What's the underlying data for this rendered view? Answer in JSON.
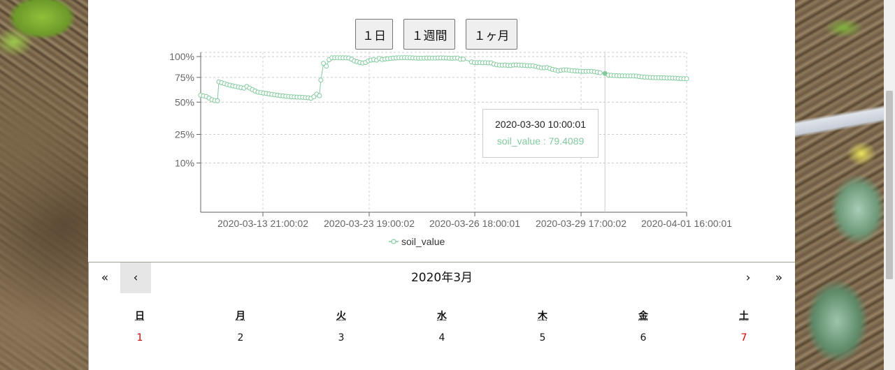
{
  "range_buttons": {
    "day": "１日",
    "week": "１週間",
    "month": "１ヶ月"
  },
  "tooltip": {
    "time": "2020-03-30 10:00:01",
    "value_text": "soil_value : 79.4089"
  },
  "legend": {
    "label": "soil_value"
  },
  "calendar": {
    "nav": {
      "prev2": "«",
      "prev": "‹",
      "label": "2020年3月",
      "next": "›",
      "next2": "»"
    },
    "weekdays": [
      "日",
      "月",
      "火",
      "水",
      "木",
      "金",
      "土"
    ],
    "first_row_days": [
      "1",
      "2",
      "3",
      "4",
      "5",
      "6",
      "7"
    ]
  },
  "colors": {
    "series": "#82ca9d",
    "grid": "#cccccc",
    "axis": "#666666",
    "weekend": "#d10000"
  },
  "chart_data": {
    "type": "line",
    "y_scale": "sqrt",
    "ylim": [
      0,
      100
    ],
    "y_ticks": [
      10,
      25,
      50,
      75,
      100
    ],
    "y_tick_labels": [
      "10%",
      "25%",
      "50%",
      "75%",
      "100%"
    ],
    "x_tick_labels": [
      "2020-03-13 21:00:02",
      "2020-03-23 19:00:02",
      "2020-03-26 18:00:01",
      "2020-03-29 17:00:02",
      "2020-04-01 16:00:01"
    ],
    "grid": true,
    "legend_position": "bottom",
    "active_point": {
      "x": "2020-03-30 10:00:01",
      "y": 79.4089
    },
    "series": [
      {
        "name": "soil_value",
        "points": [
          [
            0,
            56.5
          ],
          [
            4,
            55.9
          ],
          [
            8,
            55.2
          ],
          [
            12,
            53.8
          ],
          [
            16,
            52.2
          ],
          [
            20,
            51.5
          ],
          [
            24,
            51.2
          ],
          [
            26,
            70.2
          ],
          [
            30,
            69.2
          ],
          [
            34,
            68.2
          ],
          [
            38,
            67.3
          ],
          [
            42,
            66.6
          ],
          [
            46,
            65.9
          ],
          [
            50,
            65.3
          ],
          [
            54,
            64.6
          ],
          [
            58,
            64.0
          ],
          [
            62,
            63.5
          ],
          [
            66,
            65.2
          ],
          [
            70,
            63.6
          ],
          [
            74,
            62.0
          ],
          [
            78,
            60.6
          ],
          [
            82,
            59.5
          ],
          [
            86,
            59.0
          ],
          [
            90,
            58.6
          ],
          [
            94,
            58.2
          ],
          [
            98,
            57.7
          ],
          [
            102,
            57.3
          ],
          [
            106,
            56.9
          ],
          [
            110,
            56.5
          ],
          [
            114,
            56.1
          ],
          [
            118,
            55.8
          ],
          [
            122,
            55.5
          ],
          [
            126,
            55.2
          ],
          [
            130,
            55.0
          ],
          [
            134,
            54.8
          ],
          [
            138,
            54.7
          ],
          [
            142,
            54.6
          ],
          [
            146,
            54.5
          ],
          [
            150,
            54.3
          ],
          [
            154,
            54.0
          ],
          [
            158,
            53.5
          ],
          [
            162,
            55.0
          ],
          [
            166,
            57.5
          ],
          [
            170,
            56.0
          ],
          [
            172,
            72.0
          ],
          [
            176,
            91.5
          ],
          [
            180,
            88.0
          ],
          [
            184,
            96.0
          ],
          [
            188,
            98.5
          ],
          [
            192,
            98.5
          ],
          [
            196,
            98.5
          ],
          [
            200,
            98.4
          ],
          [
            204,
            98.4
          ],
          [
            208,
            98.3
          ],
          [
            212,
            98.2
          ],
          [
            216,
            96.5
          ],
          [
            220,
            94.5
          ],
          [
            224,
            93.5
          ],
          [
            228,
            92.5
          ],
          [
            232,
            91.8
          ],
          [
            236,
            92.5
          ],
          [
            240,
            94.5
          ],
          [
            244,
            95.5
          ],
          [
            248,
            96.0
          ],
          [
            252,
            95.5
          ],
          [
            256,
            97.5
          ],
          [
            260,
            96.2
          ],
          [
            264,
            96.8
          ],
          [
            268,
            97.2
          ],
          [
            272,
            97.7
          ],
          [
            276,
            98.0
          ],
          [
            280,
            98.2
          ],
          [
            284,
            98.4
          ],
          [
            288,
            98.5
          ],
          [
            292,
            98.6
          ],
          [
            296,
            98.5
          ],
          [
            300,
            98.4
          ],
          [
            304,
            98.2
          ],
          [
            308,
            98.0
          ],
          [
            312,
            97.9
          ],
          [
            316,
            97.9
          ],
          [
            320,
            98.0
          ],
          [
            324,
            98.1
          ],
          [
            328,
            98.1
          ],
          [
            332,
            98.0
          ],
          [
            336,
            98.0
          ],
          [
            340,
            98.2
          ],
          [
            344,
            98.3
          ],
          [
            348,
            98.2
          ],
          [
            352,
            98.1
          ],
          [
            356,
            97.9
          ],
          [
            360,
            97.8
          ],
          [
            364,
            98.0
          ],
          [
            368,
            98.1
          ],
          [
            372,
            96.5
          ],
          [
            376,
            96.8
          ],
          [
            388,
            93.2
          ],
          [
            392,
            92.4
          ],
          [
            396,
            92.3
          ],
          [
            400,
            92.4
          ],
          [
            404,
            92.2
          ],
          [
            408,
            92.3
          ],
          [
            412,
            92.1
          ],
          [
            416,
            92.0
          ],
          [
            420,
            90.5
          ],
          [
            424,
            89.6
          ],
          [
            428,
            89.3
          ],
          [
            432,
            89.2
          ],
          [
            436,
            89.3
          ],
          [
            440,
            89.0
          ],
          [
            444,
            88.8
          ],
          [
            448,
            89.4
          ],
          [
            452,
            89.5
          ],
          [
            456,
            89.3
          ],
          [
            460,
            89.1
          ],
          [
            464,
            88.9
          ],
          [
            468,
            88.7
          ],
          [
            472,
            88.6
          ],
          [
            476,
            88.5
          ],
          [
            480,
            87.6
          ],
          [
            484,
            86.9
          ],
          [
            488,
            86.0
          ],
          [
            492,
            86.1
          ],
          [
            496,
            86.3
          ],
          [
            500,
            85.3
          ],
          [
            504,
            84.2
          ],
          [
            508,
            83.4
          ],
          [
            512,
            82.5
          ],
          [
            516,
            83.1
          ],
          [
            520,
            83.6
          ],
          [
            524,
            83.6
          ],
          [
            528,
            83.1
          ],
          [
            532,
            82.7
          ],
          [
            536,
            82.5
          ],
          [
            540,
            82.2
          ],
          [
            544,
            82.0
          ],
          [
            548,
            81.8
          ],
          [
            552,
            81.8
          ],
          [
            556,
            81.9
          ],
          [
            560,
            82.0
          ],
          [
            564,
            81.5
          ],
          [
            568,
            80.8
          ],
          [
            572,
            80.3
          ],
          [
            579,
            79.4089
          ],
          [
            584,
            77.6
          ],
          [
            588,
            77.3
          ],
          [
            592,
            77.0
          ],
          [
            596,
            76.9
          ],
          [
            600,
            76.8
          ],
          [
            604,
            76.8
          ],
          [
            608,
            76.7
          ],
          [
            612,
            76.7
          ],
          [
            616,
            76.6
          ],
          [
            620,
            76.6
          ],
          [
            624,
            76.5
          ],
          [
            628,
            76.0
          ],
          [
            632,
            75.6
          ],
          [
            636,
            75.3
          ],
          [
            640,
            75.1
          ],
          [
            644,
            74.9
          ],
          [
            648,
            74.8
          ],
          [
            652,
            74.7
          ],
          [
            656,
            74.7
          ],
          [
            660,
            74.6
          ],
          [
            664,
            74.5
          ],
          [
            668,
            74.4
          ],
          [
            672,
            74.3
          ],
          [
            676,
            74.2
          ],
          [
            680,
            74.1
          ],
          [
            684,
            73.8
          ],
          [
            688,
            73.6
          ],
          [
            692,
            73.5
          ],
          [
            696,
            73.5
          ]
        ]
      }
    ]
  }
}
